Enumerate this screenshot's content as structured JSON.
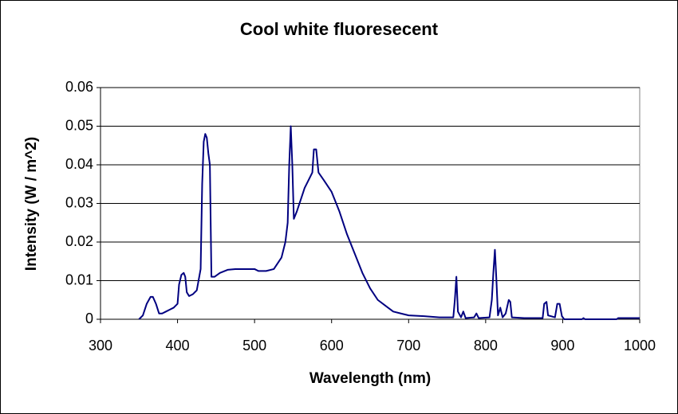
{
  "chart_data": {
    "type": "line",
    "title": "Cool white fluoresecent",
    "x_label": "Wavelength (nm)",
    "y_label": "Intensity (W / m^2)",
    "xlim": [
      300,
      1000
    ],
    "xticks": [
      300,
      400,
      500,
      600,
      700,
      800,
      900,
      1000
    ],
    "ylim": [
      0,
      0.06
    ],
    "yticks": [
      0,
      0.01,
      0.02,
      0.03,
      0.04,
      0.05,
      0.06
    ],
    "grid": true,
    "color": "#000080",
    "x": [
      350,
      355,
      360,
      365,
      368,
      372,
      376,
      380,
      385,
      390,
      395,
      400,
      402,
      405,
      408,
      410,
      412,
      415,
      420,
      425,
      430,
      432,
      434,
      436,
      438,
      440,
      442,
      444,
      448,
      455,
      465,
      475,
      490,
      500,
      505,
      515,
      525,
      535,
      540,
      543,
      545,
      547,
      549,
      551,
      555,
      560,
      565,
      570,
      575,
      577,
      580,
      583,
      590,
      600,
      610,
      620,
      630,
      640,
      650,
      660,
      670,
      680,
      690,
      700,
      720,
      740,
      758,
      760,
      762,
      764,
      768,
      771,
      774,
      785,
      788,
      791,
      805,
      808,
      810,
      812,
      814,
      816,
      819,
      822,
      826,
      830,
      832,
      834,
      850,
      874,
      876,
      879,
      881,
      890,
      893,
      896,
      899,
      902,
      925,
      927,
      929,
      970,
      972,
      1000
    ],
    "values": [
      0,
      0.001,
      0.004,
      0.0058,
      0.0058,
      0.004,
      0.0015,
      0.0015,
      0.002,
      0.0025,
      0.003,
      0.004,
      0.009,
      0.0115,
      0.012,
      0.011,
      0.007,
      0.006,
      0.0065,
      0.0075,
      0.013,
      0.035,
      0.046,
      0.048,
      0.047,
      0.043,
      0.04,
      0.011,
      0.011,
      0.012,
      0.0128,
      0.013,
      0.013,
      0.013,
      0.0125,
      0.0125,
      0.013,
      0.016,
      0.02,
      0.025,
      0.04,
      0.05,
      0.04,
      0.026,
      0.028,
      0.031,
      0.034,
      0.036,
      0.038,
      0.044,
      0.044,
      0.038,
      0.036,
      0.033,
      0.028,
      0.022,
      0.017,
      0.012,
      0.008,
      0.005,
      0.0035,
      0.002,
      0.0015,
      0.001,
      0.0008,
      0.0005,
      0.0005,
      0.005,
      0.011,
      0.002,
      0.0005,
      0.002,
      0.0003,
      0.0005,
      0.0015,
      0.0003,
      0.0005,
      0.005,
      0.012,
      0.018,
      0.01,
      0.001,
      0.003,
      0.0005,
      0.0015,
      0.005,
      0.0045,
      0.0005,
      0.0003,
      0.0003,
      0.004,
      0.0045,
      0.001,
      0.0005,
      0.004,
      0.004,
      0.0008,
      0,
      0,
      0.0003,
      0,
      0,
      0.0003,
      0.0003
    ]
  }
}
